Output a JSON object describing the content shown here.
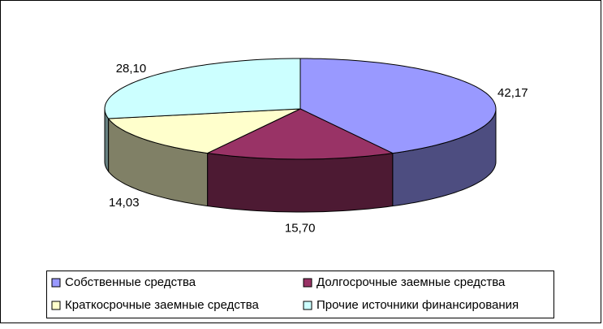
{
  "chart_data": {
    "type": "pie3d",
    "series": [
      {
        "name": "Собственные средства",
        "color": "#9999ff"
      },
      {
        "name": "Долгосрочные заемные средства",
        "color": "#993366"
      },
      {
        "name": "Краткосрочные заемные средства",
        "color": "#ffffcc"
      },
      {
        "name": "Прочие источники финансирования",
        "color": "#ccffff"
      }
    ],
    "values": [
      42.17,
      15.7,
      14.03,
      28.1
    ],
    "value_labels": [
      "42,17",
      "15,70",
      "14,03",
      "28,10"
    ]
  }
}
